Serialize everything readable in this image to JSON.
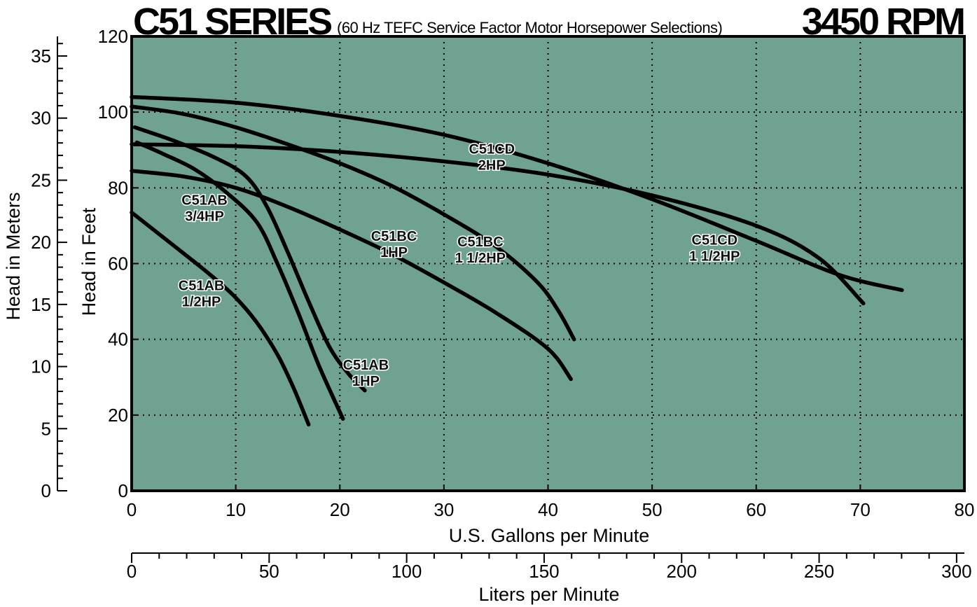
{
  "header": {
    "series_title": "C51 SERIES",
    "subtitle": "(60 Hz TEFC Service Factor Motor Horsepower Selections)",
    "rpm": "3450 RPM"
  },
  "chart_data": {
    "type": "line",
    "xlabel": "U.S. Gallons per Minute",
    "ylabel": "Head in Feet",
    "xlim": [
      0,
      80
    ],
    "ylim": [
      0,
      120
    ],
    "x_ticks": [
      0,
      10,
      20,
      30,
      40,
      50,
      60,
      70,
      80
    ],
    "y_ticks": [
      0,
      20,
      40,
      60,
      80,
      100,
      120
    ],
    "grid": true,
    "plot_background": "#6fa290",
    "line_color": "#000000",
    "secondary_y": {
      "label": "Head in Meters",
      "ticks": [
        0,
        5,
        10,
        15,
        20,
        25,
        30,
        35
      ]
    },
    "secondary_x": {
      "label": "Liters per Minute",
      "ticks": [
        0,
        50,
        100,
        150,
        200,
        250,
        300
      ]
    },
    "series": [
      {
        "name": "C51AB 1/2HP",
        "label_lines": [
          "C51AB",
          "1/2HP"
        ],
        "label_at": [
          6.7,
          53
        ],
        "points": [
          [
            0,
            73.5
          ],
          [
            3,
            67
          ],
          [
            6,
            60.5
          ],
          [
            8,
            56
          ],
          [
            10,
            51
          ],
          [
            12,
            44.5
          ],
          [
            14,
            36
          ],
          [
            15.5,
            27.5
          ],
          [
            17,
            17.5
          ]
        ]
      },
      {
        "name": "C51AB 3/4HP",
        "label_lines": [
          "C51AB",
          "3/4HP"
        ],
        "label_at": [
          7,
          75.5
        ],
        "points": [
          [
            0.5,
            92
          ],
          [
            3,
            89
          ],
          [
            6,
            85
          ],
          [
            9,
            79
          ],
          [
            12,
            71
          ],
          [
            14,
            60
          ],
          [
            16,
            47
          ],
          [
            18,
            33
          ],
          [
            20.3,
            19
          ]
        ]
      },
      {
        "name": "C51AB 1HP",
        "label_lines": [
          "C51AB",
          "1HP"
        ],
        "label_at": [
          22.5,
          32
        ],
        "points": [
          [
            0.3,
            96
          ],
          [
            4,
            92.5
          ],
          [
            8,
            88
          ],
          [
            11,
            83
          ],
          [
            13,
            75
          ],
          [
            15,
            63
          ],
          [
            17,
            50
          ],
          [
            19,
            38
          ],
          [
            20.8,
            31
          ],
          [
            22.4,
            26.5
          ]
        ]
      },
      {
        "name": "C51BC 1HP",
        "label_lines": [
          "C51BC",
          "1HP"
        ],
        "label_at": [
          25.2,
          66
        ],
        "points": [
          [
            0,
            84.5
          ],
          [
            5,
            83
          ],
          [
            10,
            80
          ],
          [
            15,
            75
          ],
          [
            20,
            69
          ],
          [
            25,
            62.5
          ],
          [
            30,
            55
          ],
          [
            35,
            47
          ],
          [
            40,
            37.5
          ],
          [
            42.2,
            29.5
          ]
        ]
      },
      {
        "name": "C51BC 1 1/2HP",
        "label_lines": [
          "C51BC",
          "1 1/2HP"
        ],
        "label_at": [
          33.5,
          64.5
        ],
        "points": [
          [
            0,
            101.5
          ],
          [
            5,
            99.5
          ],
          [
            10,
            96
          ],
          [
            15,
            91.5
          ],
          [
            20,
            86.5
          ],
          [
            25,
            80.5
          ],
          [
            30,
            73
          ],
          [
            35,
            64.5
          ],
          [
            39,
            55
          ],
          [
            41,
            47.5
          ],
          [
            42.5,
            40
          ]
        ]
      },
      {
        "name": "C51CD 1 1/2HP",
        "label_lines": [
          "C51CD",
          "1 1/2HP"
        ],
        "label_at": [
          56,
          65
        ],
        "points": [
          [
            0,
            91.5
          ],
          [
            10,
            91
          ],
          [
            20,
            89.5
          ],
          [
            30,
            87
          ],
          [
            40,
            83.5
          ],
          [
            50,
            78
          ],
          [
            60,
            70
          ],
          [
            66,
            61.5
          ],
          [
            70.3,
            49.5
          ]
        ]
      },
      {
        "name": "C51CD 2HP",
        "label_lines": [
          "C51CD",
          "2HP"
        ],
        "label_at": [
          34.6,
          89
        ],
        "points": [
          [
            0,
            104
          ],
          [
            10,
            102.5
          ],
          [
            20,
            99
          ],
          [
            30,
            94
          ],
          [
            40,
            86.5
          ],
          [
            50,
            77
          ],
          [
            60,
            66
          ],
          [
            68,
            57
          ],
          [
            74,
            53
          ]
        ]
      }
    ]
  }
}
